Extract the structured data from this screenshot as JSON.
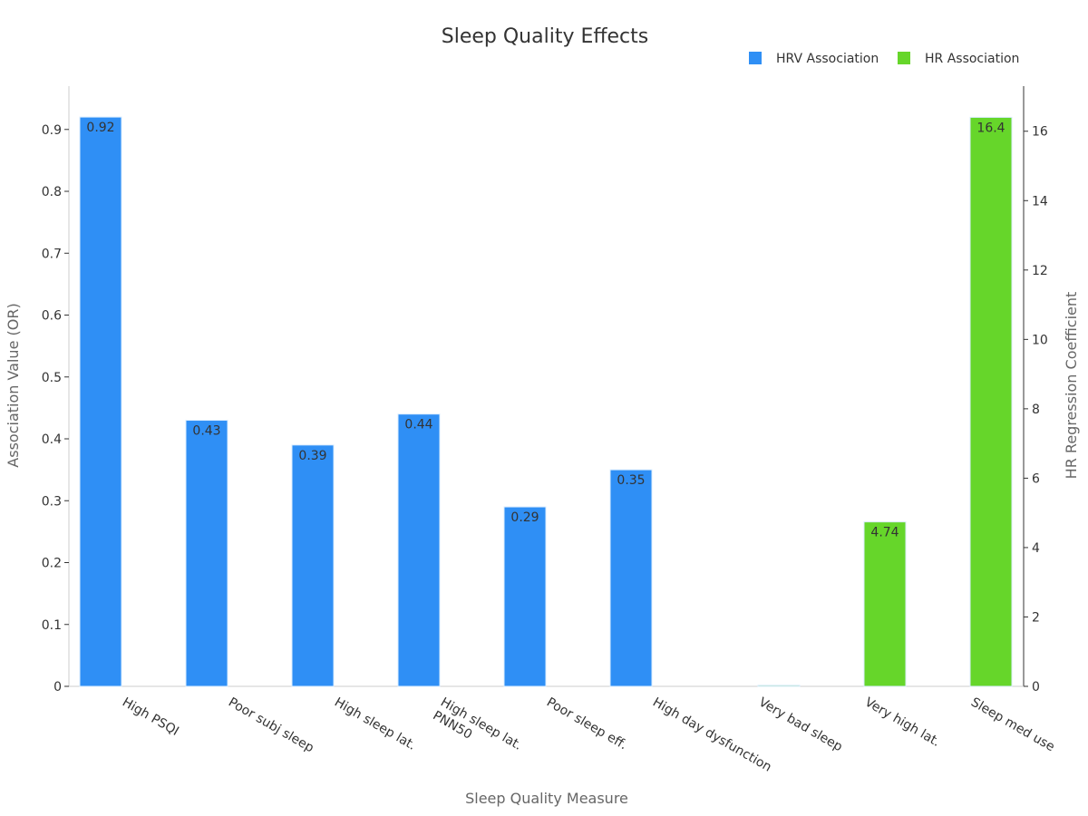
{
  "chart_data": {
    "type": "bar",
    "title": "Sleep Quality Effects",
    "xlabel": "Sleep Quality Measure",
    "ylabel": "Association Value (OR)",
    "y2label": "HR Regression Coefficient",
    "categories": [
      "High PSQI",
      "Poor subj sleep",
      "High sleep lat.",
      "High sleep lat.\nPNN50",
      "Poor sleep eff.",
      "High day dysfunction",
      "Very bad sleep",
      "Very high lat.",
      "Sleep med use"
    ],
    "series": [
      {
        "name": "HRV Association",
        "axis": "left",
        "color": "#2f8ff5",
        "values": [
          0.92,
          0.43,
          0.39,
          0.44,
          0.29,
          0.35,
          null,
          null,
          null
        ],
        "labels": [
          "0.92",
          "0.43",
          "0.39",
          "0.44",
          "0.29",
          "0.35",
          null,
          null,
          null
        ]
      },
      {
        "name": "HR Association",
        "axis": "right",
        "color": "#66d62a",
        "values": [
          null,
          null,
          null,
          null,
          null,
          null,
          0.03,
          4.74,
          16.4
        ],
        "labels": [
          null,
          null,
          null,
          null,
          null,
          null,
          null,
          "4.74",
          "16.4"
        ]
      }
    ],
    "ylim": [
      0,
      0.97
    ],
    "y2lim": [
      0,
      17.3
    ],
    "yticks": [
      0,
      0.1,
      0.2,
      0.3,
      0.4,
      0.5,
      0.6,
      0.7,
      0.8,
      0.9
    ],
    "ytick_labels": [
      "0",
      "0.1",
      "0.2",
      "0.3",
      "0.4",
      "0.5",
      "0.6",
      "0.7",
      "0.8",
      "0.9"
    ],
    "y2ticks": [
      0,
      2,
      4,
      6,
      8,
      10,
      12,
      14,
      16
    ],
    "y2tick_labels": [
      "0",
      "2",
      "4",
      "6",
      "8",
      "10",
      "12",
      "14",
      "16"
    ],
    "legend": "top-right",
    "grid": false
  }
}
